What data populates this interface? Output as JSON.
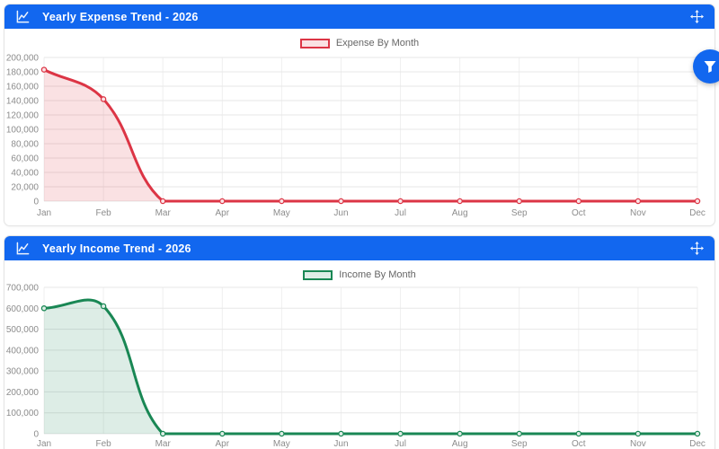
{
  "theme": {
    "header_bg": "#1267ef",
    "header_text": "#ffffff",
    "grid_color": "#e7e7e7",
    "vgrid_color": "#efefef",
    "tick_label_color": "#8c8c8c",
    "fab_bg": "#1267ef"
  },
  "cards": [
    {
      "title": "Yearly Expense Trend - 2026"
    },
    {
      "title": "Yearly Income Trend - 2026"
    }
  ],
  "fab": {
    "icon": "filter"
  },
  "chart_data": [
    {
      "type": "area",
      "title": "Yearly Expense Trend - 2026",
      "categories": [
        "Jan",
        "Feb",
        "Mar",
        "Apr",
        "May",
        "Jun",
        "Jul",
        "Aug",
        "Sep",
        "Oct",
        "Nov",
        "Dec"
      ],
      "series": [
        {
          "name": "Expense By Month",
          "values": [
            183000,
            142000,
            0,
            0,
            0,
            0,
            0,
            0,
            0,
            0,
            0,
            0
          ]
        }
      ],
      "xlabel": "",
      "ylabel": "",
      "ylim": [
        0,
        200000
      ],
      "ytick_step": 20000,
      "grid": true,
      "legend_position": "top",
      "line_color": "#dc3545",
      "fill_color": "rgba(220,53,69,0.15)",
      "point_fill": "#fbe3e6"
    },
    {
      "type": "area",
      "title": "Yearly Income Trend - 2026",
      "categories": [
        "Jan",
        "Feb",
        "Mar",
        "Apr",
        "May",
        "Jun",
        "Jul",
        "Aug",
        "Sep",
        "Oct",
        "Nov",
        "Dec"
      ],
      "series": [
        {
          "name": "Income By Month",
          "values": [
            600000,
            610000,
            0,
            0,
            0,
            0,
            0,
            0,
            0,
            0,
            0,
            0
          ]
        }
      ],
      "xlabel": "",
      "ylabel": "",
      "ylim": [
        0,
        700000
      ],
      "ytick_step": 100000,
      "grid": true,
      "legend_position": "top",
      "line_color": "#198754",
      "fill_color": "rgba(25,135,84,0.15)",
      "point_fill": "#ddeee6"
    }
  ]
}
